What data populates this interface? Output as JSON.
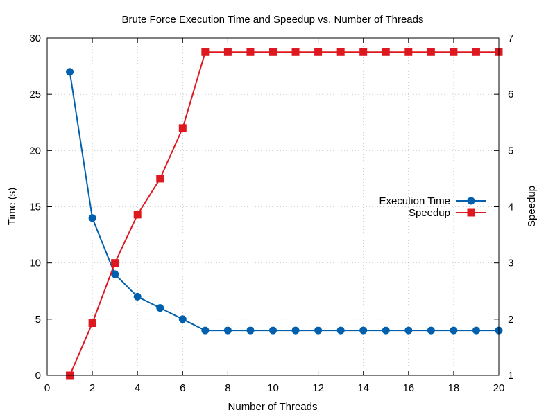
{
  "chart_data": {
    "type": "line",
    "title": "Brute Force Execution Time and Speedup vs. Number of Threads",
    "xlabel": "Number of Threads",
    "ylabel": "Time (s)",
    "y2label": "Speedup",
    "xlim": [
      0,
      20
    ],
    "ylim": [
      0,
      30
    ],
    "y2lim": [
      1,
      7
    ],
    "xticks": [
      0,
      2,
      4,
      6,
      8,
      10,
      12,
      14,
      16,
      18,
      20
    ],
    "yticks": [
      0,
      5,
      10,
      15,
      20,
      25,
      30
    ],
    "y2ticks": [
      1,
      2,
      3,
      4,
      5,
      6,
      7
    ],
    "grid": true,
    "legend_position": "right",
    "x": [
      1,
      2,
      3,
      4,
      5,
      6,
      7,
      8,
      9,
      10,
      11,
      12,
      13,
      14,
      15,
      16,
      17,
      18,
      19,
      20
    ],
    "series": [
      {
        "name": "Execution Time",
        "axis": "left",
        "color": "#0060ad",
        "marker": "circle",
        "values": [
          27,
          14,
          9,
          7,
          6,
          5,
          4,
          4,
          4,
          4,
          4,
          4,
          4,
          4,
          4,
          4,
          4,
          4,
          4,
          4
        ]
      },
      {
        "name": "Speedup",
        "axis": "right",
        "color": "#dd181f",
        "marker": "square",
        "values": [
          1.0,
          1.93,
          3.0,
          3.86,
          4.5,
          5.4,
          6.75,
          6.75,
          6.75,
          6.75,
          6.75,
          6.75,
          6.75,
          6.75,
          6.75,
          6.75,
          6.75,
          6.75,
          6.75,
          6.75
        ]
      }
    ]
  }
}
